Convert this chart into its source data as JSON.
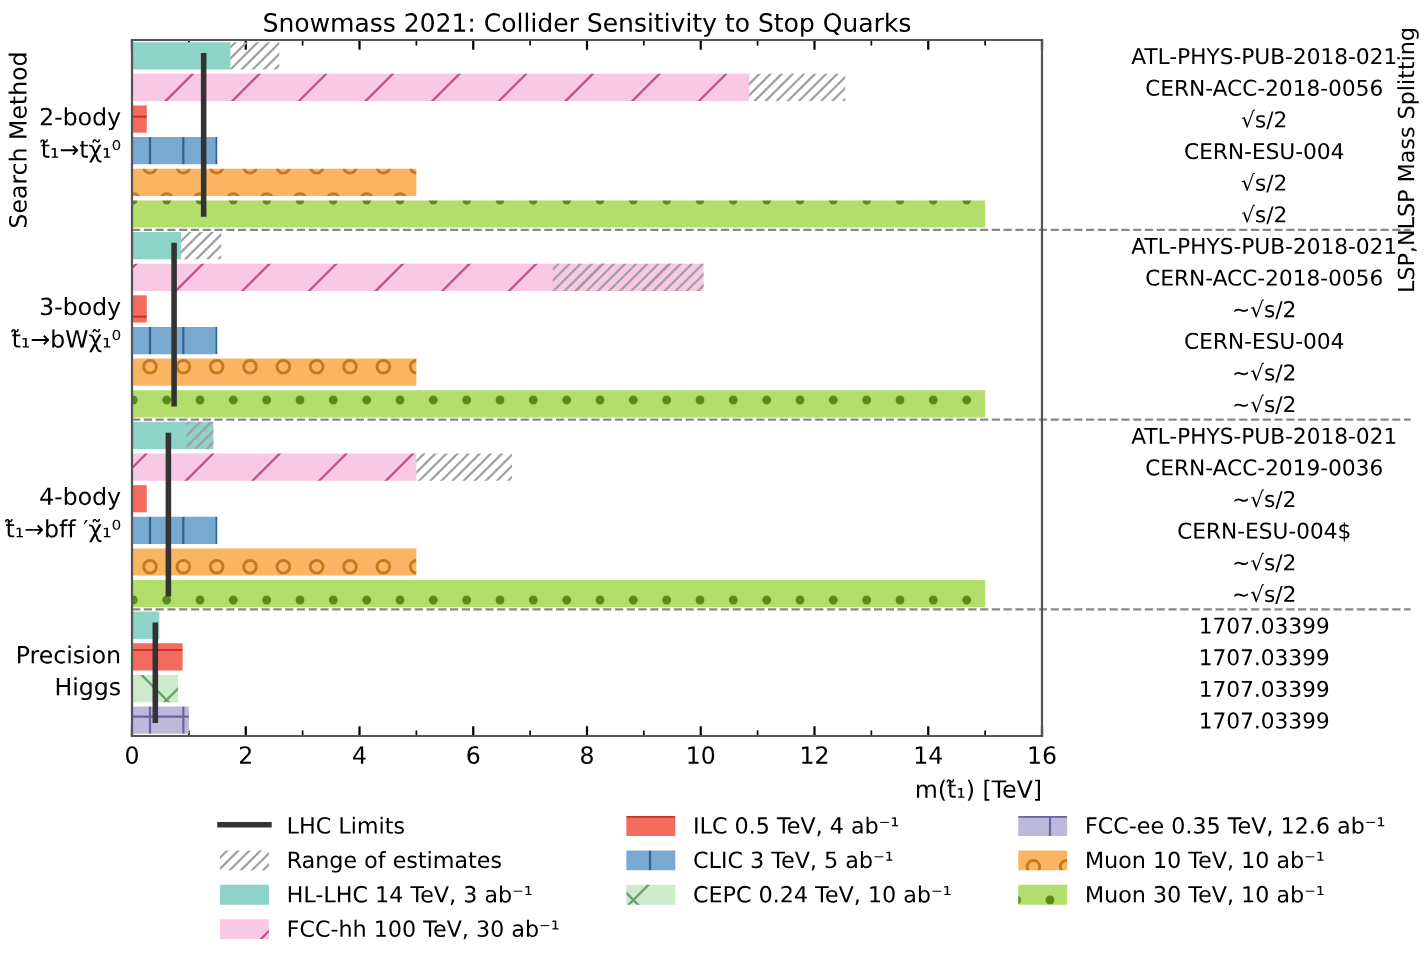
{
  "chart_data": {
    "type": "bar",
    "orientation": "horizontal",
    "title": "Snowmass 2021: Collider Sensitivity to Stop Quarks",
    "xlabel": "m(t̃₁) [TeV]",
    "ylabel": "Search Method",
    "y2label": "LSP,NLSP Mass Splitting",
    "categories": [
      "ATL-PHYS-PUB-2018-021",
      "CERN-ACC-2018-0056",
      "√s/2",
      "CERN-ESU-004",
      "√s/2",
      "√s/2",
      "ATL-PHYS-PUB-2018-021",
      "CERN-ACC-2018-0056",
      "~√s/2",
      "CERN-ESU-004",
      "~√s/2",
      "~√s/2",
      "ATL-PHYS-PUB-2018-021",
      "CERN-ACC-2019-0036",
      "~√s/2",
      "CERN-ESU-004$",
      "~√s/2",
      "~√s/2",
      "1707.03399",
      "1707.03399",
      "1707.03399",
      "1707.03399"
    ],
    "series": [
      {
        "name": "LHC Limits",
        "type": "line",
        "color": "#333333",
        "values": [
          1.26,
          1.26,
          1.26,
          1.26,
          1.26,
          1.26,
          0.74,
          0.74,
          0.74,
          0.74,
          0.74,
          0.74,
          0.64,
          0.64,
          0.64,
          0.64,
          0.64,
          0.64,
          0.41,
          0.41,
          0.41,
          0.41
        ]
      },
      {
        "name": "Range of estimates",
        "color": "#a0a0a0",
        "base": [
          1.73,
          10.85,
          null,
          null,
          null,
          null,
          0.86,
          7.4,
          null,
          null,
          null,
          null,
          0.96,
          5.0,
          null,
          null,
          null,
          null,
          null,
          null,
          null,
          null
        ],
        "values": [
          0.86,
          1.69,
          null,
          null,
          null,
          null,
          0.71,
          2.65,
          null,
          null,
          null,
          null,
          0.47,
          1.68,
          null,
          null,
          null,
          null,
          null,
          null,
          null,
          null
        ]
      },
      {
        "name": "HL-LHC 14 TeV, 3 ab⁻¹",
        "color": "#8dd3c7",
        "values": [
          1.73,
          null,
          null,
          null,
          null,
          null,
          0.86,
          null,
          null,
          null,
          null,
          null,
          1.43,
          null,
          null,
          null,
          null,
          null,
          0.48,
          null,
          null,
          null
        ]
      },
      {
        "name": "FCC-hh 100 TeV, 30 ab⁻¹",
        "color": "#f9c8e2",
        "values": [
          null,
          10.85,
          null,
          null,
          null,
          null,
          null,
          10.05,
          null,
          null,
          null,
          null,
          null,
          5.0,
          null,
          null,
          null,
          null,
          null,
          null,
          null,
          null
        ]
      },
      {
        "name": "ILC 0.5 TeV, 4 ab⁻¹",
        "color": "#f26b5e",
        "values": [
          null,
          null,
          0.26,
          null,
          null,
          null,
          null,
          null,
          0.26,
          null,
          null,
          null,
          null,
          null,
          0.26,
          null,
          null,
          null,
          null,
          0.89,
          null,
          null
        ]
      },
      {
        "name": "CLIC 3 TeV, 5 ab⁻¹",
        "color": "#77a9d1",
        "values": [
          null,
          null,
          null,
          1.5,
          null,
          null,
          null,
          null,
          null,
          1.5,
          null,
          null,
          null,
          null,
          null,
          1.5,
          null,
          null,
          null,
          null,
          null,
          null
        ]
      },
      {
        "name": "CEPC 0.24 TeV, 10 ab⁻¹",
        "color": "#cdeacb",
        "values": [
          null,
          null,
          null,
          null,
          null,
          null,
          null,
          null,
          null,
          null,
          null,
          null,
          null,
          null,
          null,
          null,
          null,
          null,
          null,
          null,
          0.81,
          null
        ]
      },
      {
        "name": "FCC-ee 0.35 TeV, 12.6 ab⁻¹",
        "color": "#bcb9dc",
        "values": [
          null,
          null,
          null,
          null,
          null,
          null,
          null,
          null,
          null,
          null,
          null,
          null,
          null,
          null,
          null,
          null,
          null,
          null,
          null,
          null,
          null,
          1.0
        ]
      },
      {
        "name": "Muon 10 TeV, 10 ab⁻¹",
        "color": "#fbb462",
        "values": [
          null,
          null,
          null,
          null,
          5.0,
          null,
          null,
          null,
          null,
          null,
          5.0,
          null,
          null,
          null,
          null,
          null,
          5.0,
          null,
          null,
          null,
          null,
          null
        ]
      },
      {
        "name": "Muon 30 TeV, 10 ab⁻¹",
        "color": "#b4de6b",
        "values": [
          null,
          null,
          null,
          null,
          null,
          15.0,
          null,
          null,
          null,
          null,
          null,
          15.0,
          null,
          null,
          null,
          null,
          null,
          15.0,
          null,
          null,
          null,
          null
        ]
      }
    ],
    "annotations": [
      "2-body\nt̃₁→tχ̃₁⁰",
      "3-body\nt̃₁→bWχ̃₁⁰",
      "4-body\nt̃₁→bff ′χ̃₁⁰",
      "Precision\nHiggs"
    ],
    "xlim": [
      0,
      16
    ],
    "xticks": [
      0,
      2,
      4,
      6,
      8,
      10,
      12,
      14,
      16
    ],
    "legend": "bottom",
    "grid": false
  }
}
